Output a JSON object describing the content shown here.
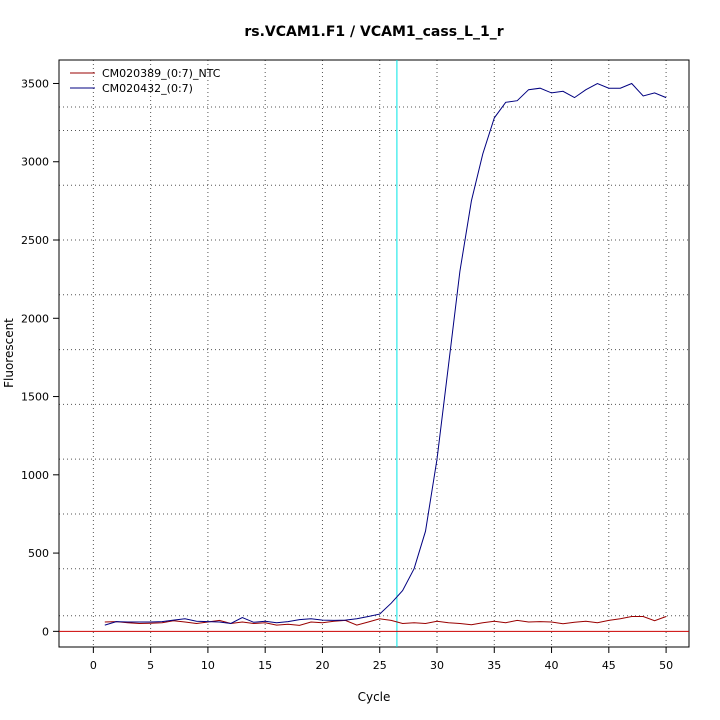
{
  "chart_data": {
    "type": "line",
    "title": "rs.VCAM1.F1 / VCAM1_cass_L_1_r",
    "xlabel": "Cycle",
    "ylabel": "Fluorescent",
    "xlim": [
      -3,
      52
    ],
    "ylim": [
      -100,
      3650
    ],
    "xticks": [
      0,
      5,
      10,
      15,
      20,
      25,
      30,
      35,
      40,
      45,
      50
    ],
    "yticks": [
      0,
      500,
      1000,
      1500,
      2000,
      2500,
      3000,
      3500
    ],
    "xgrid": [
      0,
      5,
      10,
      15,
      20,
      25,
      30,
      35,
      40,
      45,
      50
    ],
    "ygrid": [
      -100,
      100,
      400,
      750,
      1100,
      1450,
      1800,
      2150,
      2500,
      2850,
      3200,
      3350
    ],
    "grid": true,
    "legend_position": "top-left",
    "threshold_x": 26.5,
    "threshold_color": "#00e5e5",
    "baseline_y": 0,
    "baseline_color": "#cc0000",
    "x": [
      1,
      2,
      3,
      4,
      5,
      6,
      7,
      8,
      9,
      10,
      11,
      12,
      13,
      14,
      15,
      16,
      17,
      18,
      19,
      20,
      21,
      22,
      23,
      24,
      25,
      26,
      27,
      28,
      29,
      30,
      31,
      32,
      33,
      34,
      35,
      36,
      37,
      38,
      39,
      40,
      41,
      42,
      43,
      44,
      45,
      46,
      47,
      48,
      49,
      50
    ],
    "series": [
      {
        "name": "CM020389_(0:7)_NTC",
        "color": "#990000",
        "values": [
          60,
          62,
          55,
          50,
          52,
          55,
          68,
          60,
          50,
          60,
          70,
          50,
          60,
          50,
          55,
          40,
          45,
          38,
          60,
          55,
          65,
          70,
          40,
          60,
          80,
          70,
          50,
          55,
          50,
          65,
          55,
          50,
          42,
          55,
          65,
          55,
          70,
          60,
          62,
          60,
          48,
          58,
          65,
          55,
          70,
          80,
          95,
          95,
          68,
          95
        ]
      },
      {
        "name": "CM020432_(0:7)",
        "color": "#000080",
        "values": [
          40,
          62,
          60,
          60,
          60,
          62,
          72,
          80,
          65,
          62,
          60,
          50,
          88,
          58,
          65,
          55,
          62,
          75,
          80,
          72,
          70,
          72,
          80,
          95,
          110,
          180,
          260,
          400,
          640,
          1100,
          1700,
          2300,
          2750,
          3050,
          3280,
          3380,
          3390,
          3460,
          3470,
          3440,
          3450,
          3410,
          3460,
          3500,
          3470,
          3470,
          3500,
          3420,
          3440,
          3410
        ]
      }
    ]
  }
}
